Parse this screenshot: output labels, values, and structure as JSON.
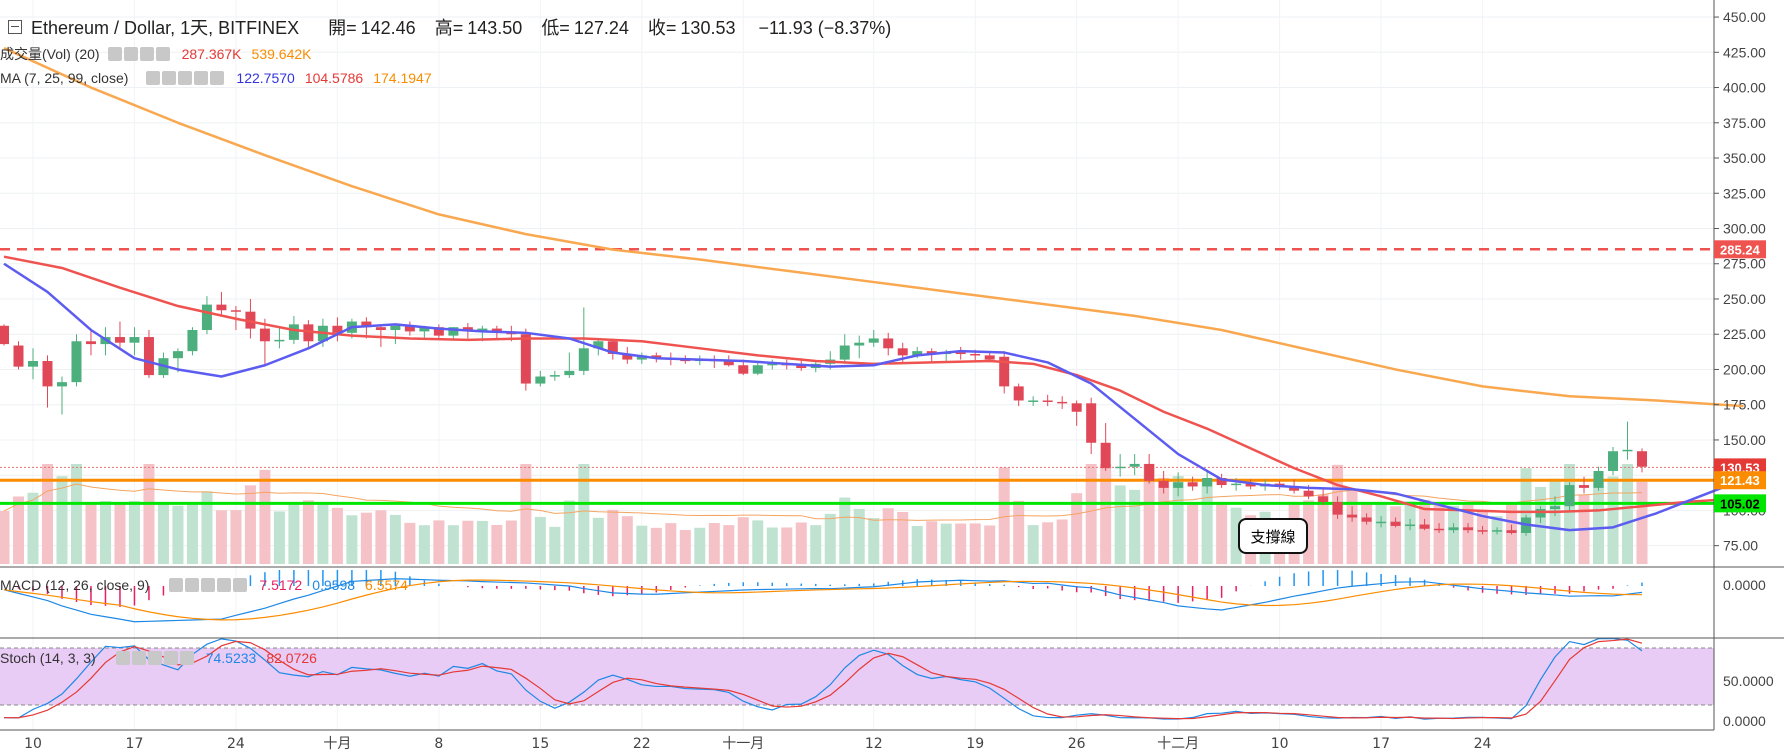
{
  "header": {
    "symbol": "Ethereum / Dollar, 1天, BITFINEX",
    "open_label": "開=",
    "open": "142.46",
    "high_label": "高=",
    "high": "143.50",
    "low_label": "低=",
    "low": "127.24",
    "close_label": "收=",
    "close": "130.53",
    "change": "−11.93 (−8.37%)"
  },
  "legends": {
    "vol": {
      "name": "成交量(Vol) (20)",
      "v1": "287.367K",
      "v2": "539.642K",
      "c1": "#e53935",
      "c2": "#fb8c00"
    },
    "ma": {
      "name": "MA (7, 25, 99, close)",
      "v1": "122.7570",
      "v2": "104.5786",
      "v3": "174.1947",
      "c1": "#3333dd",
      "c2": "#e53935",
      "c3": "#fb8c00"
    },
    "macd": {
      "name": "MACD (12, 26, close, 9)",
      "v1": "7.5172",
      "v2": "0.9598",
      "v3": "6.5574",
      "c1": "#e91e63",
      "c2": "#1e88e5",
      "c3": "#fb8c00"
    },
    "stoch": {
      "name": "Stoch (14, 3, 3)",
      "v1": "74.5233",
      "v2": "82.0726",
      "c1": "#1e88e5",
      "c2": "#e53935"
    }
  },
  "annotation": {
    "label": "支撐線"
  },
  "chart_data": {
    "type": "candlestick",
    "y_axis": {
      "range": [
        62,
        455
      ],
      "ticks": [
        "75.00",
        "100.00",
        "125.00",
        "150.00",
        "175.00",
        "200.00",
        "225.00",
        "250.00",
        "275.00",
        "300.00",
        "325.00",
        "350.00",
        "375.00",
        "400.00",
        "425.00",
        "450.00"
      ]
    },
    "x_axis": {
      "ticks": [
        "10",
        "17",
        "24",
        "十月",
        "8",
        "15",
        "22",
        "十一月",
        "12",
        "19",
        "26",
        "十二月",
        "10",
        "17",
        "24"
      ]
    },
    "price_labels": [
      {
        "text": "285.24",
        "value": 285.24,
        "color": "#ef5350"
      },
      {
        "text": "130.53",
        "value": 130.53,
        "color": "#e53935"
      },
      {
        "text": "121.43",
        "value": 121.43,
        "color": "#fb8c00"
      },
      {
        "text": "105.02",
        "value": 105.02,
        "color": "#00e600"
      }
    ],
    "lines": {
      "resistance_dashed": 285.24,
      "support_orange": 121.43,
      "support_green": 105.02,
      "last_price_dotted": 130.53
    },
    "macd_axis": [
      "0.0000"
    ],
    "stoch_axis": [
      "50.0000",
      "0.0000"
    ],
    "ohlc": [
      [
        231,
        232,
        217,
        218
      ],
      [
        217,
        220,
        200,
        202
      ],
      [
        202,
        215,
        193,
        206
      ],
      [
        206,
        210,
        173,
        188
      ],
      [
        188,
        195,
        168,
        191
      ],
      [
        191,
        225,
        188,
        220
      ],
      [
        220,
        228,
        210,
        218
      ],
      [
        218,
        230,
        210,
        223
      ],
      [
        223,
        234,
        215,
        219
      ],
      [
        219,
        230,
        210,
        223
      ],
      [
        223,
        228,
        194,
        196
      ],
      [
        196,
        212,
        194,
        208
      ],
      [
        208,
        215,
        198,
        213
      ],
      [
        213,
        230,
        210,
        228
      ],
      [
        228,
        252,
        225,
        246
      ],
      [
        246,
        255,
        238,
        242
      ],
      [
        242,
        245,
        228,
        241
      ],
      [
        241,
        250,
        222,
        229
      ],
      [
        229,
        236,
        202,
        220
      ],
      [
        220,
        230,
        215,
        221
      ],
      [
        221,
        238,
        218,
        232
      ],
      [
        232,
        235,
        215,
        220
      ],
      [
        220,
        236,
        216,
        231
      ],
      [
        231,
        237,
        220,
        226
      ],
      [
        226,
        236,
        222,
        234
      ],
      [
        234,
        237,
        222,
        230
      ],
      [
        230,
        232,
        216,
        228
      ],
      [
        228,
        232,
        218,
        231
      ],
      [
        231,
        234,
        224,
        227
      ],
      [
        227,
        231,
        222,
        230
      ],
      [
        230,
        232,
        221,
        224
      ],
      [
        224,
        230,
        221,
        230
      ],
      [
        230,
        233,
        222,
        227
      ],
      [
        227,
        231,
        220,
        229
      ],
      [
        229,
        231,
        222,
        227
      ],
      [
        227,
        231,
        220,
        225
      ],
      [
        225,
        229,
        185,
        190
      ],
      [
        190,
        199,
        188,
        195
      ],
      [
        195,
        199,
        192,
        196
      ],
      [
        196,
        212,
        194,
        199
      ],
      [
        199,
        244,
        196,
        215
      ],
      [
        215,
        222,
        210,
        220
      ],
      [
        220,
        222,
        207,
        211
      ],
      [
        211,
        216,
        204,
        207
      ],
      [
        207,
        212,
        204,
        210
      ],
      [
        210,
        212,
        205,
        208
      ],
      [
        208,
        212,
        203,
        207
      ],
      [
        207,
        210,
        204,
        206
      ],
      [
        206,
        210,
        203,
        207
      ],
      [
        207,
        210,
        201,
        206
      ],
      [
        206,
        210,
        202,
        203
      ],
      [
        203,
        207,
        196,
        197
      ],
      [
        197,
        206,
        196,
        203
      ],
      [
        203,
        207,
        200,
        204
      ],
      [
        204,
        207,
        200,
        203
      ],
      [
        203,
        208,
        199,
        201
      ],
      [
        201,
        206,
        198,
        204
      ],
      [
        204,
        213,
        200,
        207
      ],
      [
        207,
        225,
        204,
        217
      ],
      [
        217,
        224,
        208,
        219
      ],
      [
        219,
        228,
        216,
        222
      ],
      [
        222,
        226,
        210,
        215
      ],
      [
        215,
        219,
        205,
        210
      ],
      [
        210,
        216,
        208,
        213
      ],
      [
        213,
        215,
        205,
        211
      ],
      [
        211,
        214,
        205,
        212
      ],
      [
        212,
        216,
        207,
        211
      ],
      [
        211,
        214,
        205,
        210
      ],
      [
        210,
        213,
        205,
        207
      ],
      [
        209,
        213,
        183,
        188
      ],
      [
        188,
        190,
        174,
        178
      ],
      [
        178,
        181,
        174,
        178
      ],
      [
        178,
        182,
        174,
        177
      ],
      [
        177,
        181,
        172,
        176
      ],
      [
        176,
        178,
        160,
        170
      ],
      [
        176,
        180,
        140,
        148
      ],
      [
        148,
        162,
        128,
        130
      ],
      [
        130,
        140,
        124,
        131
      ],
      [
        131,
        140,
        125,
        133
      ],
      [
        133,
        140,
        119,
        121
      ],
      [
        121,
        128,
        112,
        116
      ],
      [
        116,
        127,
        110,
        120
      ],
      [
        120,
        124,
        114,
        117
      ],
      [
        117,
        128,
        112,
        123
      ],
      [
        123,
        126,
        116,
        118
      ],
      [
        118,
        123,
        114,
        119
      ],
      [
        119,
        122,
        115,
        117
      ],
      [
        117,
        122,
        114,
        119
      ],
      [
        119,
        121,
        115,
        117
      ],
      [
        117,
        122,
        112,
        114
      ],
      [
        114,
        118,
        108,
        110
      ],
      [
        110,
        115,
        104,
        106
      ],
      [
        106,
        110,
        94,
        97
      ],
      [
        97,
        103,
        92,
        95
      ],
      [
        95,
        98,
        90,
        92
      ],
      [
        92,
        96,
        88,
        92
      ],
      [
        92,
        95,
        88,
        89
      ],
      [
        89,
        94,
        86,
        90
      ],
      [
        90,
        94,
        86,
        87
      ],
      [
        87,
        91,
        84,
        86
      ],
      [
        86,
        91,
        84,
        88
      ],
      [
        88,
        91,
        84,
        86
      ],
      [
        86,
        89,
        83,
        85
      ],
      [
        85,
        88,
        83,
        86
      ],
      [
        86,
        90,
        83,
        84
      ],
      [
        84,
        97,
        82,
        95
      ],
      [
        95,
        103,
        91,
        101
      ],
      [
        101,
        110,
        96,
        103
      ],
      [
        103,
        120,
        99,
        118
      ],
      [
        118,
        124,
        112,
        116
      ],
      [
        116,
        131,
        114,
        128
      ],
      [
        128,
        145,
        125,
        142
      ],
      [
        142,
        163,
        136,
        143
      ],
      [
        142,
        144,
        127,
        131
      ]
    ],
    "ma7": [
      [
        0,
        275
      ],
      [
        3,
        255
      ],
      [
        6,
        228
      ],
      [
        9,
        208
      ],
      [
        12,
        200
      ],
      [
        15,
        195
      ],
      [
        18,
        203
      ],
      [
        21,
        215
      ],
      [
        24,
        230
      ],
      [
        27,
        232
      ],
      [
        30,
        229
      ],
      [
        33,
        227
      ],
      [
        36,
        226
      ],
      [
        39,
        222
      ],
      [
        42,
        212
      ],
      [
        45,
        208
      ],
      [
        48,
        207
      ],
      [
        51,
        206
      ],
      [
        54,
        204
      ],
      [
        57,
        202
      ],
      [
        60,
        203
      ],
      [
        63,
        210
      ],
      [
        66,
        213
      ],
      [
        69,
        212
      ],
      [
        72,
        205
      ],
      [
        75,
        190
      ],
      [
        78,
        165
      ],
      [
        81,
        140
      ],
      [
        84,
        122
      ],
      [
        87,
        118
      ],
      [
        90,
        116
      ],
      [
        93,
        115
      ],
      [
        96,
        112
      ],
      [
        99,
        104
      ],
      [
        102,
        96
      ],
      [
        105,
        90
      ],
      [
        108,
        86
      ],
      [
        111,
        88
      ],
      [
        114,
        98
      ],
      [
        117,
        110
      ],
      [
        120,
        122
      ]
    ],
    "ma25": [
      [
        0,
        280
      ],
      [
        4,
        272
      ],
      [
        8,
        258
      ],
      [
        12,
        245
      ],
      [
        16,
        236
      ],
      [
        20,
        228
      ],
      [
        24,
        224
      ],
      [
        28,
        222
      ],
      [
        32,
        221
      ],
      [
        36,
        222
      ],
      [
        40,
        222
      ],
      [
        44,
        220
      ],
      [
        48,
        215
      ],
      [
        52,
        210
      ],
      [
        56,
        206
      ],
      [
        60,
        204
      ],
      [
        64,
        205
      ],
      [
        68,
        206
      ],
      [
        71,
        204
      ],
      [
        74,
        196
      ],
      [
        77,
        185
      ],
      [
        80,
        170
      ],
      [
        83,
        158
      ],
      [
        86,
        144
      ],
      [
        89,
        130
      ],
      [
        92,
        118
      ],
      [
        95,
        110
      ],
      [
        98,
        101
      ],
      [
        101,
        100
      ],
      [
        104,
        99
      ],
      [
        107,
        99
      ],
      [
        110,
        100
      ],
      [
        113,
        103
      ],
      [
        116,
        106
      ],
      [
        119,
        108
      ],
      [
        120,
        110
      ]
    ],
    "ma99": [
      [
        0,
        428
      ],
      [
        6,
        400
      ],
      [
        12,
        375
      ],
      [
        18,
        352
      ],
      [
        24,
        330
      ],
      [
        30,
        310
      ],
      [
        36,
        296
      ],
      [
        42,
        285
      ],
      [
        48,
        278
      ],
      [
        54,
        270
      ],
      [
        60,
        262
      ],
      [
        66,
        254
      ],
      [
        72,
        246
      ],
      [
        78,
        238
      ],
      [
        84,
        228
      ],
      [
        90,
        214
      ],
      [
        96,
        200
      ],
      [
        102,
        188
      ],
      [
        108,
        181
      ],
      [
        114,
        178
      ],
      [
        120,
        174
      ]
    ]
  }
}
